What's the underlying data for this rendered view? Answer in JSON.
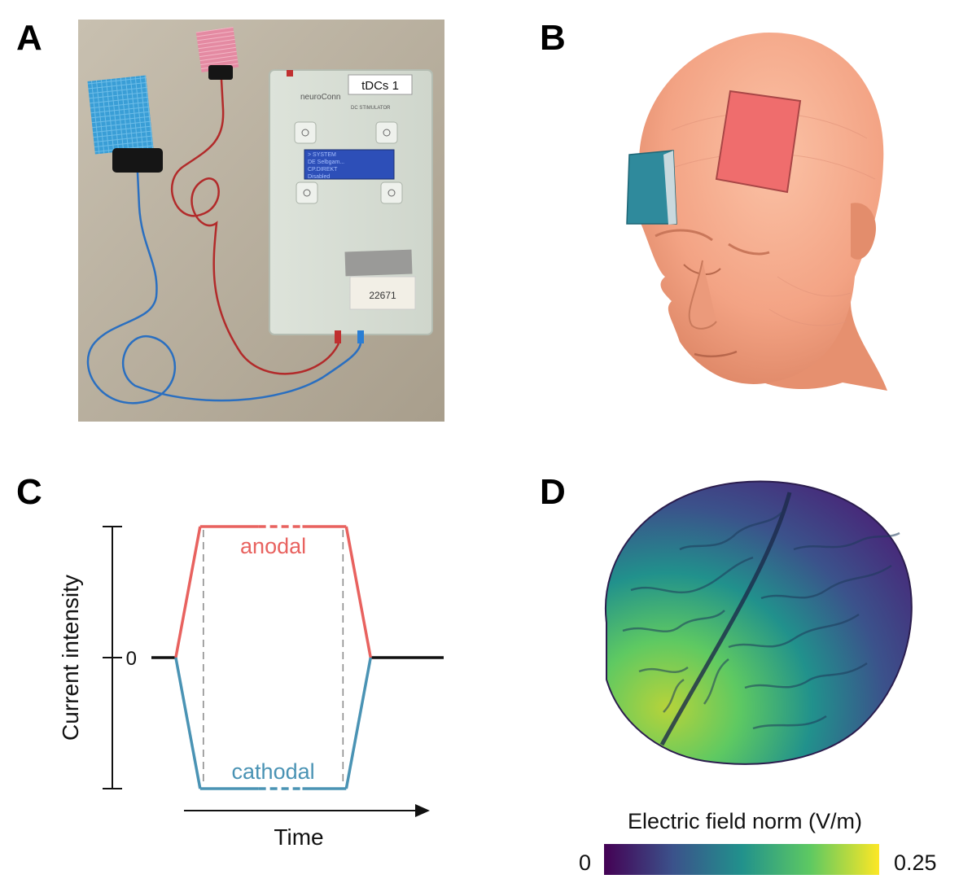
{
  "panels": {
    "a": {
      "letter": "A",
      "device_label": "tDCs 1",
      "brand": "neuroConn",
      "sub": "DC STIMULATOR",
      "lcd": [
        "> SYSTEM",
        "DE Selbgam...",
        "CP.DIREKT",
        "  Disabled"
      ],
      "tag_number": "22671"
    },
    "b": {
      "letter": "B"
    },
    "c": {
      "letter": "C"
    },
    "d": {
      "letter": "D"
    }
  },
  "colors": {
    "anodal": "#e8625f",
    "cathodal": "#4a93b4",
    "skin": "#f4a98a",
    "red_pad": "#ef6d6d",
    "teal_pad": "#2f8a9c",
    "viridis": [
      "#440154",
      "#3b528b",
      "#21918c",
      "#5ec962",
      "#fde725"
    ]
  },
  "chart_data": {
    "type": "line",
    "title": "",
    "xlabel": "Time",
    "ylabel": "Current intensity",
    "y_tick_labels": [
      "0"
    ],
    "series": [
      {
        "name": "anodal",
        "x": [
          0,
          1,
          2,
          8,
          9,
          12
        ],
        "y": [
          0,
          0,
          1,
          1,
          0,
          0
        ]
      },
      {
        "name": "cathodal",
        "x": [
          0,
          1,
          2,
          8,
          9,
          12
        ],
        "y": [
          0,
          0,
          -1,
          -1,
          0,
          0
        ]
      }
    ],
    "xlim": [
      0,
      12
    ],
    "ylim": [
      -1,
      1
    ]
  },
  "colorbar": {
    "title": "Electric field norm (V/m)",
    "min_label": "0",
    "max_label": "0.25",
    "min": 0,
    "max": 0.25
  }
}
